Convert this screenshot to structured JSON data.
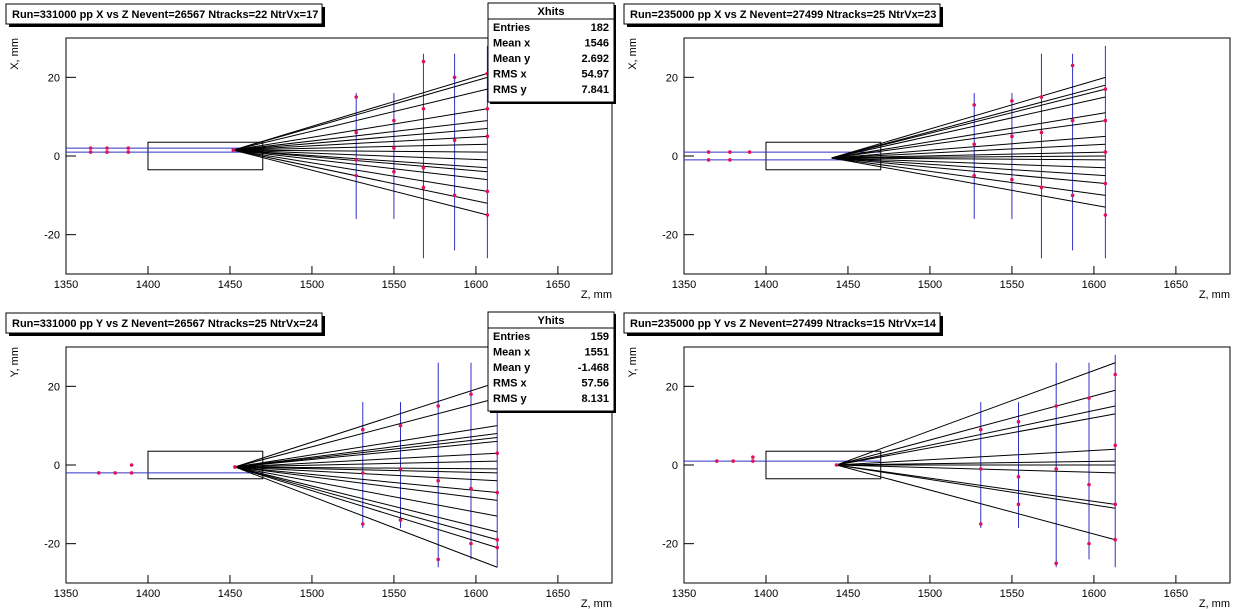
{
  "chart_data": [
    {
      "type": "scatter",
      "title": "Run=331000 pp X vs Z Nevent=26567 Ntracks=22 NtrVx=17",
      "x_label": "Z, mm",
      "y_label": "X, mm",
      "xlim": [
        1350,
        1683
      ],
      "ylim": [
        -30,
        30
      ],
      "xticks": [
        1350,
        1400,
        1450,
        1500,
        1550,
        1600,
        1650
      ],
      "yticks": [
        -20,
        0,
        20
      ],
      "track_color": "#000000",
      "hit_color": "#e0105a",
      "plane_color": "#3030c8",
      "target": {
        "x": [
          1400,
          1470
        ],
        "y": [
          -3.5,
          3.5
        ]
      },
      "beams": [
        {
          "x": [
            1350,
            1470
          ],
          "y": [
            2,
            2
          ]
        },
        {
          "x": [
            1350,
            1470
          ],
          "y": [
            1,
            1
          ]
        }
      ],
      "vertex": {
        "x": 1452,
        "y": 1.5
      },
      "track_end_x": 1607,
      "track_end_y": [
        21,
        20,
        17,
        12,
        9,
        7,
        5,
        3,
        1,
        -1,
        -3,
        -4,
        -6,
        -9,
        -12,
        -15
      ],
      "planes": {
        "x": [
          1527,
          1550,
          1568,
          1587,
          1607
        ],
        "ylo": [
          -16,
          -16,
          -26,
          -24,
          -26
        ],
        "yhi": [
          16,
          16,
          26,
          26,
          28
        ]
      },
      "hits": {
        "x": [
          1365,
          1365,
          1375,
          1375,
          1388,
          1388,
          1452,
          1527,
          1527,
          1527,
          1527,
          1550,
          1550,
          1550,
          1568,
          1568,
          1568,
          1568,
          1587,
          1587,
          1587,
          1607,
          1607,
          1607,
          1607,
          1607
        ],
        "y": [
          2,
          1,
          2,
          1,
          2,
          1,
          1.5,
          15,
          6,
          -1,
          -5,
          9,
          2,
          -4,
          24,
          12,
          -3,
          -8,
          20,
          4,
          -10,
          21,
          12,
          5,
          -9,
          -15
        ]
      },
      "stats": {
        "title": "Xhits",
        "labels": [
          "Entries",
          "Mean x",
          "Mean y",
          "RMS x",
          "RMS y"
        ],
        "values": [
          182,
          1546,
          2.692,
          54.97,
          7.841
        ]
      }
    },
    {
      "type": "scatter",
      "title": "Run=235000 pp X vs Z Nevent=27499 Ntracks=25 NtrVx=23",
      "x_label": "Z, mm",
      "y_label": "X, mm",
      "xlim": [
        1350,
        1683
      ],
      "ylim": [
        -30,
        30
      ],
      "xticks": [
        1350,
        1400,
        1450,
        1500,
        1550,
        1600,
        1650
      ],
      "yticks": [
        -20,
        0,
        20
      ],
      "track_color": "#000000",
      "hit_color": "#e0105a",
      "plane_color": "#3030c8",
      "target": {
        "x": [
          1400,
          1470
        ],
        "y": [
          -3.5,
          3.5
        ]
      },
      "beams": [
        {
          "x": [
            1350,
            1470
          ],
          "y": [
            1,
            1
          ]
        },
        {
          "x": [
            1350,
            1470
          ],
          "y": [
            -1,
            -1
          ]
        }
      ],
      "vertex": {
        "x": 1440,
        "y": -0.5
      },
      "track_end_x": 1607,
      "track_end_y": [
        20,
        18,
        17,
        15,
        11,
        9,
        5,
        3,
        1,
        0,
        -1,
        -3,
        -5,
        -7,
        -10,
        -13
      ],
      "planes": {
        "x": [
          1527,
          1550,
          1568,
          1587,
          1607
        ],
        "ylo": [
          -16,
          -16,
          -26,
          -24,
          -26
        ],
        "yhi": [
          16,
          16,
          26,
          26,
          28
        ]
      },
      "hits": {
        "x": [
          1365,
          1365,
          1378,
          1378,
          1390,
          1527,
          1527,
          1527,
          1550,
          1550,
          1550,
          1568,
          1568,
          1568,
          1587,
          1587,
          1587,
          1607,
          1607,
          1607,
          1607,
          1607
        ],
        "y": [
          1,
          -1,
          1,
          -1,
          1,
          13,
          3,
          -5,
          14,
          5,
          -6,
          15,
          6,
          -8,
          23,
          9,
          -10,
          17,
          9,
          1,
          -7,
          -15
        ]
      }
    },
    {
      "type": "scatter",
      "title": "Run=331000 pp Y vs Z Nevent=26567 Ntracks=25 NtrVx=24",
      "x_label": "Z, mm",
      "y_label": "Y, mm",
      "xlim": [
        1350,
        1683
      ],
      "ylim": [
        -30,
        30
      ],
      "xticks": [
        1350,
        1400,
        1450,
        1500,
        1550,
        1600,
        1650
      ],
      "yticks": [
        -20,
        0,
        20
      ],
      "track_color": "#000000",
      "hit_color": "#e0105a",
      "plane_color": "#3030c8",
      "target": {
        "x": [
          1400,
          1470
        ],
        "y": [
          -3.5,
          3.5
        ]
      },
      "beams": [
        {
          "x": [
            1350,
            1470
          ],
          "y": [
            -2,
            -2
          ]
        }
      ],
      "vertex": {
        "x": 1453,
        "y": -0.5
      },
      "track_end_x": 1613,
      "track_end_y": [
        21,
        17,
        10,
        8,
        7,
        6,
        3,
        1,
        -1,
        -2,
        -4,
        -7,
        -9,
        -13,
        -17,
        -19,
        -21,
        -26
      ],
      "planes": {
        "x": [
          1531,
          1554,
          1577,
          1597,
          1613
        ],
        "ylo": [
          -16,
          -16,
          -26,
          -24,
          -26
        ],
        "yhi": [
          16,
          16,
          26,
          26,
          28
        ]
      },
      "hits": {
        "x": [
          1370,
          1380,
          1390,
          1390,
          1453,
          1531,
          1531,
          1531,
          1554,
          1554,
          1554,
          1577,
          1577,
          1577,
          1597,
          1597,
          1597,
          1613,
          1613,
          1613,
          1613,
          1613
        ],
        "y": [
          -2,
          -2,
          -2,
          0,
          -0.5,
          9,
          -2,
          -15,
          10,
          -1,
          -14,
          15,
          -4,
          -24,
          18,
          -6,
          -20,
          21,
          3,
          -7,
          -19,
          -21
        ]
      },
      "stats": {
        "title": "Yhits",
        "labels": [
          "Entries",
          "Mean x",
          "Mean y",
          "RMS x",
          "RMS y"
        ],
        "values": [
          159,
          1551,
          -1.468,
          57.56,
          8.131
        ]
      }
    },
    {
      "type": "scatter",
      "title": "Run=235000 pp Y vs Z Nevent=27499 Ntracks=15 NtrVx=14",
      "x_label": "Z, mm",
      "y_label": "Y, mm",
      "xlim": [
        1350,
        1683
      ],
      "ylim": [
        -30,
        30
      ],
      "xticks": [
        1350,
        1400,
        1450,
        1500,
        1550,
        1600,
        1650
      ],
      "yticks": [
        -20,
        0,
        20
      ],
      "track_color": "#000000",
      "hit_color": "#e0105a",
      "plane_color": "#3030c8",
      "target": {
        "x": [
          1400,
          1470
        ],
        "y": [
          -3.5,
          3.5
        ]
      },
      "beams": [
        {
          "x": [
            1350,
            1470
          ],
          "y": [
            1,
            1
          ]
        }
      ],
      "vertex": {
        "x": 1443,
        "y": 0
      },
      "track_end_x": 1613,
      "track_end_y": [
        26,
        19,
        15,
        13,
        4,
        1,
        0,
        -2,
        -10,
        -11,
        -19
      ],
      "planes": {
        "x": [
          1531,
          1554,
          1577,
          1597,
          1613
        ],
        "ylo": [
          -16,
          -16,
          -26,
          -24,
          -26
        ],
        "yhi": [
          16,
          16,
          26,
          26,
          28
        ]
      },
      "hits": {
        "x": [
          1370,
          1380,
          1392,
          1392,
          1443,
          1531,
          1531,
          1531,
          1554,
          1554,
          1554,
          1577,
          1577,
          1577,
          1597,
          1597,
          1597,
          1613,
          1613,
          1613,
          1613
        ],
        "y": [
          1,
          1,
          2,
          1,
          0,
          9,
          -1,
          -15,
          11,
          -3,
          -10,
          15,
          -1,
          -25,
          17,
          -5,
          -20,
          23,
          5,
          -10,
          -19
        ]
      }
    }
  ]
}
